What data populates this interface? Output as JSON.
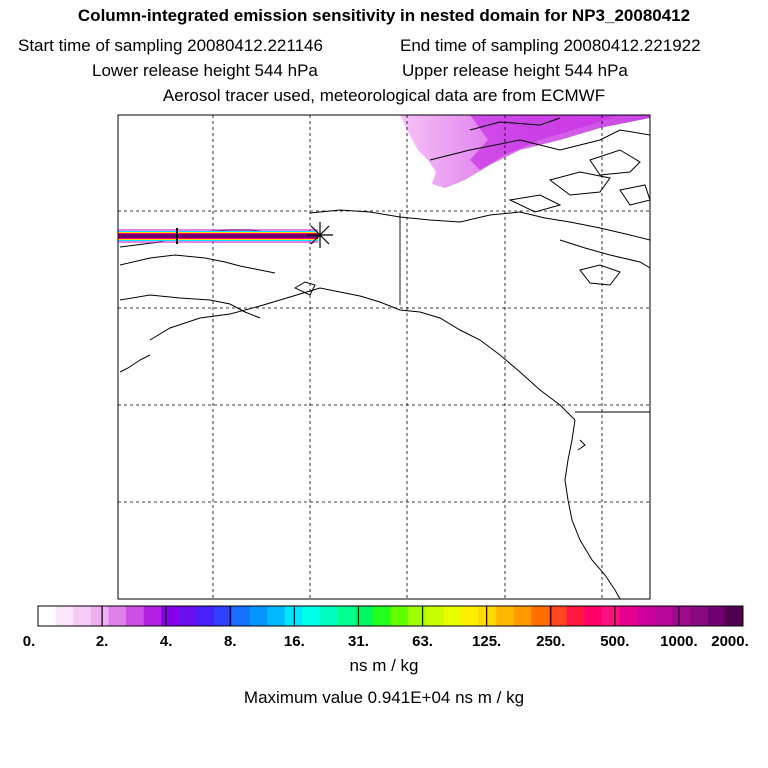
{
  "header": {
    "title": "Column-integrated emission sensitivity in nested domain for NP3_20080412",
    "start_time": "Start time of sampling 20080412.221146",
    "end_time": "End time of sampling 20080412.221922",
    "lower_height": "Lower release height  544 hPa",
    "upper_height": "Upper release height  544 hPa",
    "info": "Aerosol tracer used, meteorological data are from ECMWF"
  },
  "colorbar": {
    "labels": [
      "0.",
      "2.",
      "4.",
      "8.",
      "16.",
      "31.",
      "63.",
      "125.",
      "250.",
      "500.",
      "1000.",
      "2000."
    ],
    "colors": [
      "#ffffff",
      "#fbe6fb",
      "#f6ccf6",
      "#efb0f0",
      "#e080ea",
      "#cc50e4",
      "#b320e2",
      "#8800e8",
      "#6a10f0",
      "#4a20f8",
      "#3040ff",
      "#1870ff",
      "#0894ff",
      "#00b8ff",
      "#00e6ff",
      "#00ffe6",
      "#00ffc0",
      "#00ff90",
      "#00f860",
      "#20ff20",
      "#60ff00",
      "#a0ff00",
      "#c8ff00",
      "#e8ff00",
      "#fff000",
      "#ffd800",
      "#ffb800",
      "#ff9a00",
      "#ff7000",
      "#ff4820",
      "#ff1840",
      "#ff0066",
      "#ff1080",
      "#e6008c",
      "#d0009c",
      "#b8089c",
      "#a00890",
      "#880880",
      "#700070",
      "#500050"
    ],
    "units": "ns m / kg"
  },
  "footer": {
    "max_value": "Maximum value  0.941E+04 ns m / kg"
  }
}
